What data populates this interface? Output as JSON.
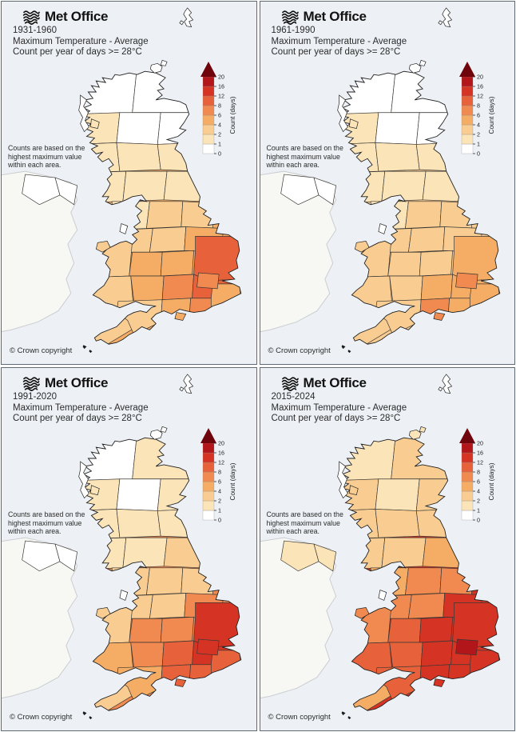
{
  "branding": {
    "logo_text": "Met Office"
  },
  "shared": {
    "title_line2": "Maximum Temperature - Average",
    "title_line3": "Count per year of days >= 28°C",
    "note": "Counts are based on the highest maximum value within each area.",
    "copyright": "© Crown copyright"
  },
  "panels": [
    {
      "period": "1931-1960"
    },
    {
      "period": "1961-1990"
    },
    {
      "period": "1991-2020"
    },
    {
      "period": "2015-2024"
    }
  ],
  "legend": {
    "label": "Count (days)",
    "ticks": [
      0,
      1,
      2,
      4,
      6,
      8,
      12,
      16,
      20
    ],
    "segment_colors": [
      "#ffffff",
      "#fce4b9",
      "#f9cd92",
      "#f5ad66",
      "#f18a50",
      "#e7623b",
      "#d53425",
      "#b2161b"
    ],
    "arrow_color": "#6f040c"
  },
  "map_colors": {
    "sea": "#edf1f5",
    "ireland_fill": "#f7f7f4",
    "ireland_stroke": "#c9cdd0",
    "border": "#3a3733",
    "coast": "#1f1f1f"
  },
  "chart_data": {
    "type": "choropleth",
    "title": "Maximum Temperature - Average, Count per year of days >= 28°C",
    "unit": "Count (days)",
    "legend_ticks": [
      0,
      1,
      2,
      4,
      6,
      8,
      12,
      16,
      20
    ],
    "periods": [
      "1931-1960",
      "1961-1990",
      "1991-2020",
      "2015-2024"
    ],
    "regions": [
      {
        "name": "shetland",
        "values": [
          0,
          0,
          0,
          0
        ]
      },
      {
        "name": "orkney",
        "values": [
          0,
          0,
          0,
          1
        ]
      },
      {
        "name": "hebrides",
        "values": [
          0,
          0,
          0,
          0
        ]
      },
      {
        "name": "scot-n",
        "values": [
          0,
          0,
          0,
          1
        ]
      },
      {
        "name": "scot-ne",
        "values": [
          0,
          0,
          1,
          2
        ]
      },
      {
        "name": "scot-w",
        "values": [
          1,
          1,
          1,
          2
        ]
      },
      {
        "name": "scot-e",
        "values": [
          0,
          0,
          0,
          1
        ]
      },
      {
        "name": "scot-s",
        "values": [
          1,
          1,
          1,
          2
        ]
      },
      {
        "name": "ni",
        "values": [
          0,
          0,
          0,
          1
        ]
      },
      {
        "name": "n-england",
        "values": [
          1,
          1,
          2,
          4
        ]
      },
      {
        "name": "yorkshire",
        "values": [
          2,
          2,
          3,
          6
        ]
      },
      {
        "name": "nw-england",
        "values": [
          2,
          2,
          3,
          6
        ]
      },
      {
        "name": "n-wales",
        "values": [
          2,
          2,
          3,
          6
        ]
      },
      {
        "name": "midlands-w",
        "values": [
          4,
          3,
          6,
          10
        ]
      },
      {
        "name": "midlands-e",
        "values": [
          4,
          3,
          7,
          12
        ]
      },
      {
        "name": "east-anglia",
        "values": [
          8,
          4,
          12,
          14
        ]
      },
      {
        "name": "s-wales",
        "values": [
          3,
          3,
          4,
          8
        ]
      },
      {
        "name": "wessex",
        "values": [
          5,
          6,
          9,
          12
        ]
      },
      {
        "name": "london",
        "values": [
          6,
          6,
          13,
          17
        ]
      },
      {
        "name": "se",
        "values": [
          7,
          4,
          9,
          13
        ]
      },
      {
        "name": "kent",
        "values": [
          5,
          4,
          8,
          12
        ]
      },
      {
        "name": "cornwall",
        "values": [
          2,
          2,
          2,
          4
        ]
      },
      {
        "name": "devon",
        "values": [
          3,
          2,
          4,
          8
        ]
      }
    ]
  }
}
